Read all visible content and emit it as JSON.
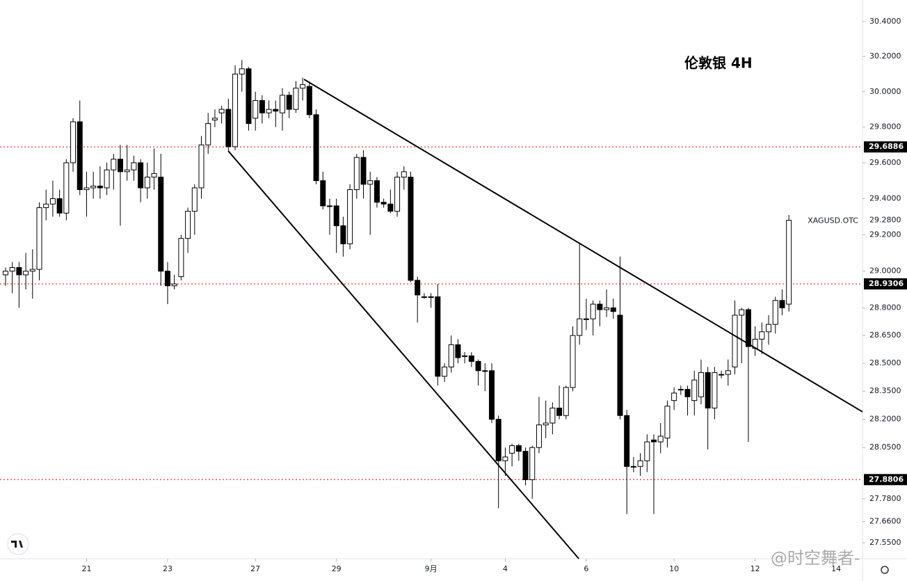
{
  "chart_data": {
    "type": "candlestick",
    "title": "伦敦银 4H",
    "log_scale": true,
    "ylim": [
      27.467,
      30.524
    ],
    "xlim": [
      -0.82,
      126.9
    ],
    "yticks": [
      {
        "value": 30.4,
        "label": "30.4000"
      },
      {
        "value": 30.2,
        "label": "30.2000"
      },
      {
        "value": 30.0,
        "label": "30.0000"
      },
      {
        "value": 29.8,
        "label": "29.8000"
      },
      {
        "value": 29.6,
        "label": "29.6000"
      },
      {
        "value": 29.4,
        "label": "29.4000"
      },
      {
        "value": 29.2,
        "label": "29.2000"
      },
      {
        "value": 29.0,
        "label": "29.0000"
      },
      {
        "value": 28.8,
        "label": "28.8000"
      },
      {
        "value": 28.65,
        "label": "28.6500"
      },
      {
        "value": 28.5,
        "label": "28.5000"
      },
      {
        "value": 28.35,
        "label": "28.3500"
      },
      {
        "value": 28.2,
        "label": "28.2000"
      },
      {
        "value": 28.05,
        "label": "28.0500"
      },
      {
        "value": 27.78,
        "label": "27.7800"
      },
      {
        "value": 27.66,
        "label": "27.6600"
      },
      {
        "value": 27.55,
        "label": "27.5500"
      }
    ],
    "xticks": [
      {
        "value": 12,
        "label": "21"
      },
      {
        "value": 24,
        "label": "23"
      },
      {
        "value": 37,
        "label": "27"
      },
      {
        "value": 49,
        "label": "29"
      },
      {
        "value": 63,
        "label": "9月"
      },
      {
        "value": 74,
        "label": "4"
      },
      {
        "value": 86,
        "label": "6"
      },
      {
        "value": 99,
        "label": "10"
      },
      {
        "value": 111,
        "label": "12"
      },
      {
        "value": 123,
        "label": "14"
      }
    ],
    "levels": [
      29.6886,
      28.9306,
      27.8806
    ],
    "level_color": "#e53935",
    "symbol": {
      "name": "XAGUSD.OTC",
      "value": 29.28,
      "value_label": "29.2800"
    },
    "trendlines": [
      [
        [
          44.2,
          30.07
        ],
        [
          126.9,
          28.24
        ]
      ],
      [
        [
          33.0,
          29.665
        ],
        [
          84.9,
          27.467
        ]
      ]
    ],
    "up_color": "#ffffff",
    "down_color": "#000000",
    "candles": [
      [
        28.98,
        29.02,
        28.92,
        29.0
      ],
      [
        29.0,
        29.05,
        28.88,
        29.02
      ],
      [
        29.02,
        29.05,
        28.8,
        28.98
      ],
      [
        28.98,
        29.1,
        28.9,
        29.0
      ],
      [
        29.0,
        29.12,
        28.85,
        29.01
      ],
      [
        29.01,
        29.38,
        28.95,
        29.35
      ],
      [
        29.35,
        29.45,
        29.28,
        29.37
      ],
      [
        29.37,
        29.5,
        29.3,
        29.4
      ],
      [
        29.4,
        29.45,
        29.3,
        29.32
      ],
      [
        29.32,
        29.62,
        29.28,
        29.6
      ],
      [
        29.6,
        29.85,
        29.55,
        29.83
      ],
      [
        29.83,
        29.95,
        29.42,
        29.45
      ],
      [
        29.45,
        29.55,
        29.3,
        29.46
      ],
      [
        29.46,
        29.55,
        29.4,
        29.47
      ],
      [
        29.47,
        29.58,
        29.4,
        29.46
      ],
      [
        29.46,
        29.6,
        29.42,
        29.56
      ],
      [
        29.56,
        29.65,
        29.45,
        29.62
      ],
      [
        29.62,
        29.7,
        29.25,
        29.55
      ],
      [
        29.55,
        29.7,
        29.5,
        29.56
      ],
      [
        29.56,
        29.64,
        29.5,
        29.6
      ],
      [
        29.6,
        29.62,
        29.38,
        29.46
      ],
      [
        29.46,
        29.6,
        29.4,
        29.52
      ],
      [
        29.52,
        29.68,
        29.45,
        29.54
      ],
      [
        29.52,
        29.65,
        28.92,
        29.0
      ],
      [
        29.0,
        29.05,
        28.82,
        28.92
      ],
      [
        28.92,
        28.98,
        28.9,
        28.93
      ],
      [
        28.97,
        29.2,
        28.95,
        29.18
      ],
      [
        29.18,
        29.35,
        29.1,
        29.33
      ],
      [
        29.33,
        29.48,
        29.2,
        29.46
      ],
      [
        29.46,
        29.75,
        29.4,
        29.7
      ],
      [
        29.7,
        29.88,
        29.65,
        29.82
      ],
      [
        29.84,
        29.9,
        29.8,
        29.85
      ],
      [
        29.88,
        29.92,
        29.82,
        29.9
      ],
      [
        29.9,
        29.96,
        29.66,
        29.69
      ],
      [
        29.69,
        30.15,
        29.67,
        30.1
      ],
      [
        30.1,
        30.18,
        30.0,
        30.13
      ],
      [
        30.13,
        30.14,
        29.78,
        29.82
      ],
      [
        29.85,
        30.0,
        29.78,
        29.95
      ],
      [
        29.95,
        29.98,
        29.82,
        29.88
      ],
      [
        29.88,
        29.95,
        29.85,
        29.9
      ],
      [
        29.9,
        29.95,
        29.8,
        29.89
      ],
      [
        29.88,
        30.02,
        29.78,
        29.98
      ],
      [
        29.98,
        30.0,
        29.85,
        29.9
      ],
      [
        29.9,
        30.06,
        29.88,
        30.02
      ],
      [
        30.02,
        30.08,
        29.95,
        30.04
      ],
      [
        30.03,
        30.05,
        29.85,
        29.87
      ],
      [
        29.87,
        29.9,
        29.48,
        29.5
      ],
      [
        29.5,
        29.55,
        29.34,
        29.36
      ],
      [
        29.36,
        29.4,
        29.2,
        29.36
      ],
      [
        29.36,
        29.4,
        29.1,
        29.25
      ],
      [
        29.25,
        29.3,
        29.08,
        29.15
      ],
      [
        29.15,
        29.48,
        29.12,
        29.45
      ],
      [
        29.45,
        29.65,
        29.4,
        29.63
      ],
      [
        29.63,
        29.67,
        29.4,
        29.48
      ],
      [
        29.48,
        29.55,
        29.2,
        29.5
      ],
      [
        29.5,
        29.52,
        29.35,
        29.38
      ],
      [
        29.38,
        29.4,
        29.35,
        29.37
      ],
      [
        29.37,
        29.45,
        29.32,
        29.33
      ],
      [
        29.33,
        29.55,
        29.3,
        29.52
      ],
      [
        29.52,
        29.58,
        29.45,
        29.55
      ],
      [
        29.52,
        29.55,
        28.94,
        28.95
      ],
      [
        28.95,
        28.97,
        28.72,
        28.87
      ],
      [
        28.86,
        28.88,
        28.85,
        28.86
      ],
      [
        28.86,
        28.88,
        28.8,
        28.86
      ],
      [
        28.86,
        28.93,
        28.38,
        28.43
      ],
      [
        28.43,
        28.5,
        28.4,
        28.48
      ],
      [
        28.48,
        28.65,
        28.45,
        28.6
      ],
      [
        28.6,
        28.63,
        28.5,
        28.53
      ],
      [
        28.54,
        28.56,
        28.5,
        28.54
      ],
      [
        28.54,
        28.56,
        28.48,
        28.51
      ],
      [
        28.51,
        28.52,
        28.38,
        28.46
      ],
      [
        28.46,
        28.5,
        28.35,
        28.46
      ],
      [
        28.46,
        28.5,
        28.18,
        28.2
      ],
      [
        28.2,
        28.22,
        27.73,
        27.98
      ],
      [
        27.98,
        28.05,
        27.9,
        28.0
      ],
      [
        28.02,
        28.07,
        27.95,
        28.06
      ],
      [
        28.06,
        28.07,
        27.98,
        28.03
      ],
      [
        28.03,
        28.05,
        27.85,
        27.88
      ],
      [
        27.88,
        28.06,
        27.78,
        28.05
      ],
      [
        28.05,
        28.32,
        28.02,
        28.17
      ],
      [
        28.17,
        28.3,
        28.1,
        28.18
      ],
      [
        28.18,
        28.29,
        28.12,
        28.26
      ],
      [
        28.26,
        28.38,
        28.2,
        28.22
      ],
      [
        28.22,
        28.38,
        28.2,
        28.37
      ],
      [
        28.37,
        28.7,
        28.35,
        28.65
      ],
      [
        28.65,
        29.15,
        28.6,
        28.74
      ],
      [
        28.74,
        28.85,
        28.68,
        28.74
      ],
      [
        28.74,
        28.84,
        28.65,
        28.82
      ],
      [
        28.82,
        28.84,
        28.7,
        28.79
      ],
      [
        28.79,
        28.9,
        28.75,
        28.8
      ],
      [
        28.8,
        28.85,
        28.74,
        28.78
      ],
      [
        28.76,
        29.08,
        28.2,
        28.22
      ],
      [
        28.22,
        28.25,
        27.7,
        27.95
      ],
      [
        27.95,
        28.0,
        27.92,
        27.95
      ],
      [
        27.95,
        28.02,
        27.9,
        27.98
      ],
      [
        27.98,
        28.12,
        27.92,
        28.08
      ],
      [
        28.09,
        28.12,
        27.7,
        28.08
      ],
      [
        28.08,
        28.18,
        28.02,
        28.11
      ],
      [
        28.1,
        28.3,
        28.05,
        28.27
      ],
      [
        28.3,
        28.37,
        28.25,
        28.34
      ],
      [
        28.36,
        28.38,
        28.33,
        28.36
      ],
      [
        28.36,
        28.38,
        28.22,
        28.32
      ],
      [
        28.3,
        28.46,
        28.22,
        28.41
      ],
      [
        28.32,
        28.52,
        28.28,
        28.45
      ],
      [
        28.45,
        28.48,
        28.04,
        28.26
      ],
      [
        28.26,
        28.48,
        28.2,
        28.45
      ],
      [
        28.44,
        28.46,
        28.42,
        28.44
      ],
      [
        28.44,
        28.52,
        28.38,
        28.46
      ],
      [
        28.48,
        28.84,
        28.44,
        28.76
      ],
      [
        28.76,
        28.8,
        28.5,
        28.79
      ],
      [
        28.79,
        28.8,
        28.08,
        28.59
      ],
      [
        28.58,
        28.7,
        28.54,
        28.63
      ],
      [
        28.63,
        28.72,
        28.55,
        28.67
      ],
      [
        28.67,
        28.76,
        28.6,
        28.71
      ],
      [
        28.71,
        28.86,
        28.66,
        28.84
      ],
      [
        28.84,
        28.9,
        28.76,
        28.8
      ],
      [
        28.82,
        29.31,
        28.78,
        29.28
      ]
    ]
  },
  "watermark": "@时空舞者-"
}
